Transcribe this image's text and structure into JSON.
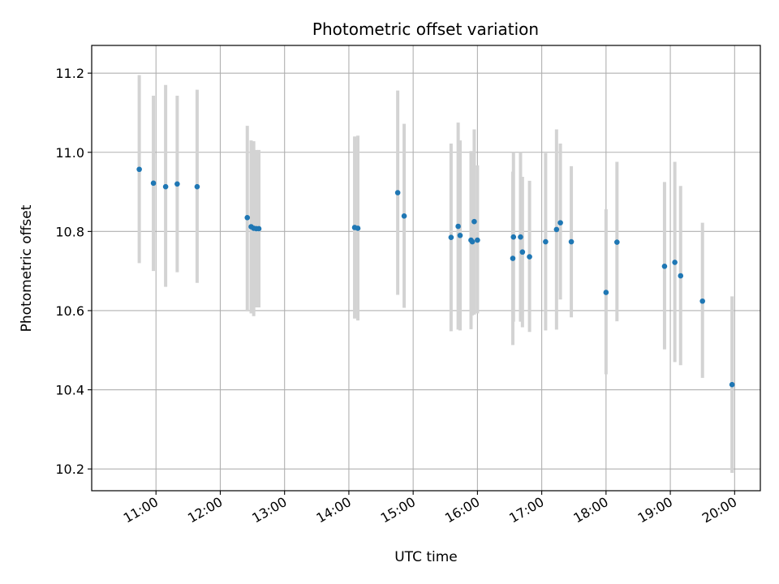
{
  "chart_data": {
    "type": "scatter",
    "title": "Photometric offset variation",
    "xlabel": "UTC time",
    "ylabel": "Photometric offset",
    "x_unit": "hours UTC",
    "xlim": [
      10.0,
      20.4
    ],
    "ylim": [
      10.145,
      11.27
    ],
    "x_ticks": [
      {
        "value": 11,
        "label": "11:00"
      },
      {
        "value": 12,
        "label": "12:00"
      },
      {
        "value": 13,
        "label": "13:00"
      },
      {
        "value": 14,
        "label": "14:00"
      },
      {
        "value": 15,
        "label": "15:00"
      },
      {
        "value": 16,
        "label": "16:00"
      },
      {
        "value": 17,
        "label": "17:00"
      },
      {
        "value": 18,
        "label": "18:00"
      },
      {
        "value": 19,
        "label": "19:00"
      },
      {
        "value": 20,
        "label": "20:00"
      }
    ],
    "y_ticks": [
      {
        "value": 10.2,
        "label": "10.2"
      },
      {
        "value": 10.4,
        "label": "10.4"
      },
      {
        "value": 10.6,
        "label": "10.6"
      },
      {
        "value": 10.8,
        "label": "10.8"
      },
      {
        "value": 11.0,
        "label": "11.0"
      },
      {
        "value": 11.2,
        "label": "11.2"
      }
    ],
    "grid": true,
    "marker_color": "#1f77b4",
    "errorbar_color": "#d3d3d3",
    "points": [
      {
        "x": 10.74,
        "y": 10.957,
        "err_low": 10.72,
        "err_high": 11.195
      },
      {
        "x": 10.96,
        "y": 10.922,
        "err_low": 10.7,
        "err_high": 11.143
      },
      {
        "x": 11.15,
        "y": 10.913,
        "err_low": 10.66,
        "err_high": 11.17
      },
      {
        "x": 11.33,
        "y": 10.92,
        "err_low": 10.697,
        "err_high": 11.143
      },
      {
        "x": 11.64,
        "y": 10.913,
        "err_low": 10.67,
        "err_high": 11.158
      },
      {
        "x": 12.42,
        "y": 10.835,
        "err_low": 10.6,
        "err_high": 11.067
      },
      {
        "x": 12.48,
        "y": 10.812,
        "err_low": 10.593,
        "err_high": 11.03
      },
      {
        "x": 12.52,
        "y": 10.808,
        "err_low": 10.586,
        "err_high": 11.028
      },
      {
        "x": 12.56,
        "y": 10.807,
        "err_low": 10.608,
        "err_high": 11.006
      },
      {
        "x": 12.6,
        "y": 10.807,
        "err_low": 10.608,
        "err_high": 11.006
      },
      {
        "x": 14.09,
        "y": 10.81,
        "err_low": 10.58,
        "err_high": 11.04
      },
      {
        "x": 14.14,
        "y": 10.808,
        "err_low": 10.575,
        "err_high": 11.042
      },
      {
        "x": 14.76,
        "y": 10.898,
        "err_low": 10.64,
        "err_high": 11.156
      },
      {
        "x": 14.86,
        "y": 10.839,
        "err_low": 10.607,
        "err_high": 11.072
      },
      {
        "x": 15.59,
        "y": 10.785,
        "err_low": 10.548,
        "err_high": 11.022
      },
      {
        "x": 15.7,
        "y": 10.813,
        "err_low": 10.552,
        "err_high": 11.075
      },
      {
        "x": 15.73,
        "y": 10.79,
        "err_low": 10.55,
        "err_high": 11.03
      },
      {
        "x": 15.9,
        "y": 10.778,
        "err_low": 10.553,
        "err_high": 11.003
      },
      {
        "x": 15.92,
        "y": 10.774,
        "err_low": 10.588,
        "err_high": 10.96
      },
      {
        "x": 15.95,
        "y": 10.825,
        "err_low": 10.59,
        "err_high": 11.058
      },
      {
        "x": 16.0,
        "y": 10.778,
        "err_low": 10.593,
        "err_high": 10.967
      },
      {
        "x": 16.55,
        "y": 10.732,
        "err_low": 10.513,
        "err_high": 10.951
      },
      {
        "x": 16.56,
        "y": 10.786,
        "err_low": 10.572,
        "err_high": 11.0
      },
      {
        "x": 16.67,
        "y": 10.786,
        "err_low": 10.572,
        "err_high": 11.0
      },
      {
        "x": 16.7,
        "y": 10.748,
        "err_low": 10.558,
        "err_high": 10.938
      },
      {
        "x": 16.81,
        "y": 10.736,
        "err_low": 10.546,
        "err_high": 10.928
      },
      {
        "x": 17.06,
        "y": 10.774,
        "err_low": 10.55,
        "err_high": 10.998
      },
      {
        "x": 17.23,
        "y": 10.805,
        "err_low": 10.552,
        "err_high": 11.058
      },
      {
        "x": 17.29,
        "y": 10.822,
        "err_low": 10.628,
        "err_high": 11.022
      },
      {
        "x": 17.46,
        "y": 10.774,
        "err_low": 10.583,
        "err_high": 10.965
      },
      {
        "x": 18.0,
        "y": 10.646,
        "err_low": 10.439,
        "err_high": 10.856
      },
      {
        "x": 18.17,
        "y": 10.773,
        "err_low": 10.573,
        "err_high": 10.976
      },
      {
        "x": 18.91,
        "y": 10.712,
        "err_low": 10.502,
        "err_high": 10.925
      },
      {
        "x": 19.07,
        "y": 10.722,
        "err_low": 10.47,
        "err_high": 10.976
      },
      {
        "x": 19.16,
        "y": 10.688,
        "err_low": 10.462,
        "err_high": 10.915
      },
      {
        "x": 19.5,
        "y": 10.624,
        "err_low": 10.43,
        "err_high": 10.822
      },
      {
        "x": 19.96,
        "y": 10.413,
        "err_low": 10.19,
        "err_high": 10.636
      }
    ]
  }
}
